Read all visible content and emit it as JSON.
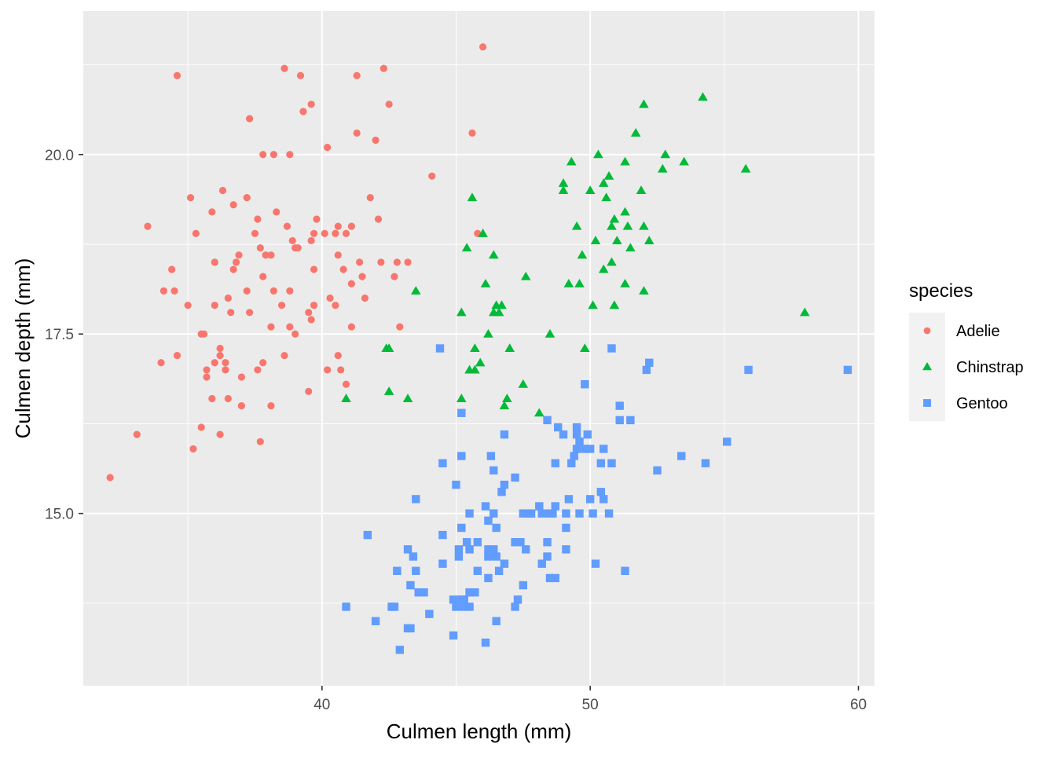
{
  "chart_data": {
    "type": "scatter",
    "title": "",
    "xlabel": "Culmen length (mm)",
    "ylabel": "Culmen depth (mm)",
    "xlim": [
      31.1,
      60.6
    ],
    "ylim": [
      12.6,
      22.0
    ],
    "x_ticks": [
      40,
      50,
      60
    ],
    "x_tick_labels": [
      "40",
      "50",
      "60"
    ],
    "y_ticks": [
      15.0,
      17.5,
      20.0
    ],
    "y_tick_labels": [
      "15.0",
      "17.5",
      "20.0"
    ],
    "grid": true,
    "background": "#ebebeb",
    "legend": {
      "title": "species",
      "position": "right"
    },
    "series": [
      {
        "name": "Adelie",
        "color": "#f8766d",
        "marker": "circle",
        "points": [
          [
            32.1,
            15.5
          ],
          [
            33.1,
            16.1
          ],
          [
            33.5,
            19.0
          ],
          [
            34.0,
            17.1
          ],
          [
            34.1,
            18.1
          ],
          [
            34.4,
            18.4
          ],
          [
            34.5,
            18.1
          ],
          [
            34.6,
            21.1
          ],
          [
            34.6,
            17.2
          ],
          [
            35.0,
            17.9
          ],
          [
            35.1,
            19.4
          ],
          [
            35.2,
            15.9
          ],
          [
            35.3,
            18.9
          ],
          [
            35.5,
            16.2
          ],
          [
            35.5,
            17.5
          ],
          [
            35.6,
            17.5
          ],
          [
            35.7,
            16.9
          ],
          [
            35.7,
            17.0
          ],
          [
            35.9,
            19.2
          ],
          [
            35.9,
            16.6
          ],
          [
            36.0,
            18.5
          ],
          [
            36.0,
            17.9
          ],
          [
            36.0,
            17.1
          ],
          [
            36.2,
            17.2
          ],
          [
            36.2,
            16.1
          ],
          [
            36.2,
            17.3
          ],
          [
            36.3,
            19.5
          ],
          [
            36.4,
            17.0
          ],
          [
            36.4,
            17.1
          ],
          [
            36.5,
            18.0
          ],
          [
            36.5,
            16.6
          ],
          [
            36.6,
            17.8
          ],
          [
            36.7,
            18.4
          ],
          [
            36.7,
            19.3
          ],
          [
            36.8,
            18.5
          ],
          [
            36.9,
            18.6
          ],
          [
            37.0,
            16.9
          ],
          [
            37.0,
            16.5
          ],
          [
            37.2,
            18.1
          ],
          [
            37.2,
            19.4
          ],
          [
            37.3,
            17.8
          ],
          [
            37.3,
            20.5
          ],
          [
            37.5,
            18.9
          ],
          [
            37.6,
            19.1
          ],
          [
            37.6,
            17.0
          ],
          [
            37.7,
            18.7
          ],
          [
            37.7,
            16.0
          ],
          [
            37.8,
            18.3
          ],
          [
            37.8,
            17.1
          ],
          [
            37.8,
            20.0
          ],
          [
            37.9,
            18.6
          ],
          [
            38.1,
            18.6
          ],
          [
            38.1,
            17.6
          ],
          [
            38.1,
            16.5
          ],
          [
            38.2,
            18.1
          ],
          [
            38.2,
            20.0
          ],
          [
            38.3,
            19.2
          ],
          [
            38.5,
            17.9
          ],
          [
            38.6,
            21.2
          ],
          [
            38.6,
            17.2
          ],
          [
            38.7,
            19.0
          ],
          [
            38.8,
            18.1
          ],
          [
            38.8,
            17.6
          ],
          [
            38.8,
            20.0
          ],
          [
            38.9,
            18.8
          ],
          [
            39.0,
            17.5
          ],
          [
            39.0,
            18.7
          ],
          [
            39.1,
            18.7
          ],
          [
            39.2,
            21.1
          ],
          [
            39.3,
            20.6
          ],
          [
            39.5,
            16.7
          ],
          [
            39.5,
            17.8
          ],
          [
            39.6,
            17.7
          ],
          [
            39.6,
            20.7
          ],
          [
            39.6,
            18.8
          ],
          [
            39.7,
            18.4
          ],
          [
            39.7,
            17.9
          ],
          [
            39.7,
            18.9
          ],
          [
            39.8,
            19.1
          ],
          [
            40.1,
            18.9
          ],
          [
            40.2,
            20.1
          ],
          [
            40.2,
            17.0
          ],
          [
            40.3,
            18.0
          ],
          [
            40.5,
            18.9
          ],
          [
            40.5,
            17.9
          ],
          [
            40.6,
            18.6
          ],
          [
            40.6,
            19.0
          ],
          [
            40.6,
            17.2
          ],
          [
            40.7,
            17.0
          ],
          [
            40.8,
            18.4
          ],
          [
            40.9,
            16.8
          ],
          [
            40.9,
            18.9
          ],
          [
            41.1,
            17.6
          ],
          [
            41.1,
            18.2
          ],
          [
            41.1,
            19.0
          ],
          [
            41.3,
            20.3
          ],
          [
            41.3,
            21.1
          ],
          [
            41.4,
            18.5
          ],
          [
            41.5,
            18.3
          ],
          [
            41.6,
            18.0
          ],
          [
            41.8,
            19.4
          ],
          [
            42.0,
            20.2
          ],
          [
            42.1,
            19.1
          ],
          [
            42.2,
            18.5
          ],
          [
            42.3,
            21.2
          ],
          [
            42.5,
            20.7
          ],
          [
            42.7,
            18.3
          ],
          [
            42.8,
            18.5
          ],
          [
            42.9,
            17.6
          ],
          [
            43.2,
            18.5
          ],
          [
            44.1,
            19.7
          ],
          [
            45.6,
            20.3
          ],
          [
            45.8,
            18.9
          ],
          [
            46.0,
            21.5
          ]
        ]
      },
      {
        "name": "Chinstrap",
        "color": "#00ba38",
        "marker": "triangle",
        "points": [
          [
            40.9,
            16.6
          ],
          [
            42.4,
            17.3
          ],
          [
            42.5,
            16.7
          ],
          [
            42.5,
            17.3
          ],
          [
            43.2,
            16.6
          ],
          [
            43.5,
            18.1
          ],
          [
            45.2,
            16.6
          ],
          [
            45.2,
            17.8
          ],
          [
            45.4,
            18.7
          ],
          [
            45.5,
            17.0
          ],
          [
            45.6,
            19.4
          ],
          [
            45.7,
            17.3
          ],
          [
            45.7,
            17.0
          ],
          [
            45.9,
            17.1
          ],
          [
            46.0,
            18.9
          ],
          [
            46.1,
            18.2
          ],
          [
            46.2,
            17.5
          ],
          [
            46.4,
            18.6
          ],
          [
            46.4,
            17.8
          ],
          [
            46.5,
            17.9
          ],
          [
            46.6,
            17.8
          ],
          [
            46.7,
            17.9
          ],
          [
            46.8,
            16.5
          ],
          [
            46.9,
            16.6
          ],
          [
            47.0,
            17.3
          ],
          [
            47.5,
            16.8
          ],
          [
            47.6,
            18.3
          ],
          [
            48.1,
            16.4
          ],
          [
            48.5,
            17.5
          ],
          [
            49.0,
            19.5
          ],
          [
            49.0,
            19.6
          ],
          [
            49.2,
            18.2
          ],
          [
            49.3,
            19.9
          ],
          [
            49.5,
            19.0
          ],
          [
            49.6,
            18.2
          ],
          [
            49.7,
            18.6
          ],
          [
            49.8,
            17.3
          ],
          [
            50.0,
            19.5
          ],
          [
            50.1,
            17.9
          ],
          [
            50.2,
            18.8
          ],
          [
            50.3,
            20.0
          ],
          [
            50.5,
            18.4
          ],
          [
            50.5,
            19.6
          ],
          [
            50.6,
            19.4
          ],
          [
            50.7,
            19.7
          ],
          [
            50.8,
            18.5
          ],
          [
            50.8,
            19.0
          ],
          [
            50.9,
            17.9
          ],
          [
            50.9,
            19.1
          ],
          [
            51.0,
            18.8
          ],
          [
            51.3,
            18.2
          ],
          [
            51.3,
            19.2
          ],
          [
            51.3,
            19.9
          ],
          [
            51.4,
            19.0
          ],
          [
            51.5,
            18.7
          ],
          [
            51.7,
            20.3
          ],
          [
            51.9,
            19.5
          ],
          [
            52.0,
            18.1
          ],
          [
            52.0,
            19.0
          ],
          [
            52.0,
            20.7
          ],
          [
            52.2,
            18.8
          ],
          [
            52.7,
            19.8
          ],
          [
            52.8,
            20.0
          ],
          [
            53.5,
            19.9
          ],
          [
            54.2,
            20.8
          ],
          [
            55.8,
            19.8
          ],
          [
            58.0,
            17.8
          ]
        ]
      },
      {
        "name": "Gentoo",
        "color": "#619cff",
        "marker": "square",
        "points": [
          [
            40.9,
            13.7
          ],
          [
            41.7,
            14.7
          ],
          [
            42.0,
            13.5
          ],
          [
            42.6,
            13.7
          ],
          [
            42.7,
            13.7
          ],
          [
            42.8,
            14.2
          ],
          [
            42.9,
            13.1
          ],
          [
            43.2,
            14.5
          ],
          [
            43.2,
            13.4
          ],
          [
            43.3,
            13.4
          ],
          [
            43.3,
            14.0
          ],
          [
            43.4,
            14.4
          ],
          [
            43.5,
            14.2
          ],
          [
            43.5,
            15.2
          ],
          [
            43.6,
            13.9
          ],
          [
            43.8,
            13.9
          ],
          [
            44.0,
            13.6
          ],
          [
            44.4,
            17.3
          ],
          [
            44.5,
            14.3
          ],
          [
            44.5,
            15.7
          ],
          [
            44.5,
            14.7
          ],
          [
            44.9,
            13.8
          ],
          [
            44.9,
            13.3
          ],
          [
            45.0,
            13.7
          ],
          [
            45.0,
            15.4
          ],
          [
            45.1,
            14.5
          ],
          [
            45.1,
            14.4
          ],
          [
            45.2,
            13.8
          ],
          [
            45.2,
            14.8
          ],
          [
            45.2,
            15.8
          ],
          [
            45.2,
            16.4
          ],
          [
            45.3,
            13.7
          ],
          [
            45.3,
            13.8
          ],
          [
            45.4,
            14.6
          ],
          [
            45.5,
            13.7
          ],
          [
            45.5,
            13.9
          ],
          [
            45.5,
            14.5
          ],
          [
            45.5,
            15.0
          ],
          [
            45.7,
            13.9
          ],
          [
            45.8,
            14.2
          ],
          [
            45.8,
            14.6
          ],
          [
            46.1,
            13.2
          ],
          [
            46.1,
            15.1
          ],
          [
            46.2,
            14.1
          ],
          [
            46.2,
            14.4
          ],
          [
            46.2,
            14.5
          ],
          [
            46.2,
            14.9
          ],
          [
            46.3,
            15.8
          ],
          [
            46.4,
            14.5
          ],
          [
            46.4,
            15.0
          ],
          [
            46.4,
            15.6
          ],
          [
            46.5,
            13.5
          ],
          [
            46.5,
            14.4
          ],
          [
            46.5,
            14.8
          ],
          [
            46.6,
            14.2
          ],
          [
            46.7,
            15.3
          ],
          [
            46.8,
            14.3
          ],
          [
            46.8,
            15.4
          ],
          [
            46.8,
            16.1
          ],
          [
            47.2,
            13.7
          ],
          [
            47.2,
            14.6
          ],
          [
            47.2,
            15.5
          ],
          [
            47.3,
            13.8
          ],
          [
            47.4,
            14.6
          ],
          [
            47.5,
            14.0
          ],
          [
            47.5,
            15.0
          ],
          [
            47.6,
            14.5
          ],
          [
            47.7,
            15.0
          ],
          [
            47.8,
            15.0
          ],
          [
            48.1,
            15.1
          ],
          [
            48.2,
            14.3
          ],
          [
            48.2,
            15.0
          ],
          [
            48.4,
            14.4
          ],
          [
            48.4,
            14.6
          ],
          [
            48.4,
            16.3
          ],
          [
            48.5,
            14.1
          ],
          [
            48.5,
            15.0
          ],
          [
            48.6,
            15.0
          ],
          [
            48.7,
            14.1
          ],
          [
            48.7,
            15.1
          ],
          [
            48.7,
            15.7
          ],
          [
            48.8,
            16.2
          ],
          [
            49.0,
            16.1
          ],
          [
            49.1,
            14.5
          ],
          [
            49.1,
            14.8
          ],
          [
            49.1,
            15.0
          ],
          [
            49.2,
            15.2
          ],
          [
            49.3,
            15.7
          ],
          [
            49.4,
            15.8
          ],
          [
            49.5,
            15.9
          ],
          [
            49.5,
            16.1
          ],
          [
            49.5,
            16.2
          ],
          [
            49.6,
            15.0
          ],
          [
            49.6,
            16.0
          ],
          [
            49.8,
            15.9
          ],
          [
            49.8,
            16.8
          ],
          [
            49.9,
            16.1
          ],
          [
            50.0,
            15.2
          ],
          [
            50.0,
            15.9
          ],
          [
            50.1,
            15.0
          ],
          [
            50.2,
            14.3
          ],
          [
            50.4,
            15.3
          ],
          [
            50.4,
            15.7
          ],
          [
            50.5,
            15.2
          ],
          [
            50.5,
            15.9
          ],
          [
            50.7,
            15.0
          ],
          [
            50.8,
            15.7
          ],
          [
            50.8,
            17.3
          ],
          [
            51.1,
            16.3
          ],
          [
            51.1,
            16.5
          ],
          [
            51.3,
            14.2
          ],
          [
            51.5,
            16.3
          ],
          [
            52.1,
            17.0
          ],
          [
            52.2,
            17.1
          ],
          [
            52.5,
            15.6
          ],
          [
            53.4,
            15.8
          ],
          [
            54.3,
            15.7
          ],
          [
            55.1,
            16.0
          ],
          [
            55.9,
            17.0
          ],
          [
            59.6,
            17.0
          ]
        ]
      }
    ]
  }
}
